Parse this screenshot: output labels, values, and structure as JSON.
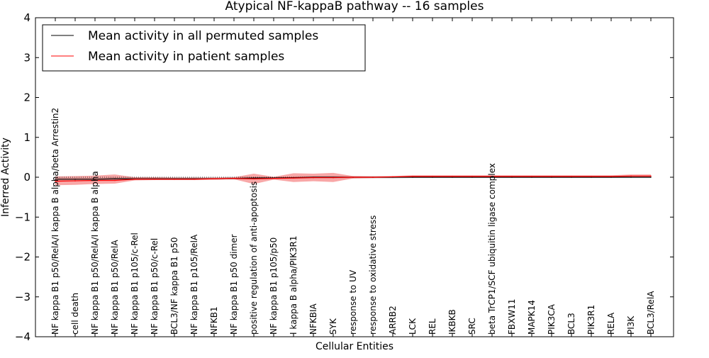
{
  "chart_data": {
    "type": "line",
    "title": "Atypical NF-kappaB pathway -- 16 samples",
    "xlabel": "Cellular Entities",
    "ylabel": "Inferred Activity",
    "ylim": [
      -4,
      4
    ],
    "yticks": [
      "−4",
      "−3",
      "−2",
      "−1",
      "0",
      "1",
      "2",
      "3",
      "4"
    ],
    "ytick_values": [
      -4,
      -3,
      -2,
      -1,
      0,
      1,
      2,
      3,
      4
    ],
    "grid": false,
    "legend_position": "top-left",
    "categories": [
      "NF kappa B1 p50/RelA/I kappa B alpha/beta Arrestin2",
      "cell death",
      "NF kappa B1 p50/RelA/I kappa B alpha",
      "NF kappa B1 p50/RelA",
      "NF kappa B1 p105/c-Rel",
      "NF kappa B1 p50/c-Rel",
      "BCL3/NF kappa B1 p50",
      "NF kappa B1 p105/RelA",
      "NFKB1",
      "NF kappa B1 p50 dimer",
      "positive regulation of anti-apoptosis",
      "NF kappa B1 p105/p50",
      "I kappa B alpha/PIK3R1",
      "NFKBIA",
      "SYK",
      "response to UV",
      "response to oxidative stress",
      "ARRB2",
      "LCK",
      "REL",
      "IKBKB",
      "SRC",
      "beta TrCP1/SCF ubiquitin ligase complex",
      "FBXW11",
      "MAPK14",
      "PIK3CA",
      "BCL3",
      "PIK3R1",
      "RELA",
      "PI3K",
      "BCL3/RelA"
    ],
    "series": [
      {
        "name": "Mean activity in all permuted samples",
        "color": "#000000",
        "values": [
          -0.05,
          -0.05,
          -0.05,
          -0.04,
          -0.04,
          -0.04,
          -0.04,
          -0.04,
          -0.04,
          -0.03,
          -0.02,
          -0.02,
          -0.01,
          0.0,
          0.0,
          0.0,
          0.0,
          0.0,
          0.0,
          0.0,
          0.0,
          0.0,
          0.0,
          0.0,
          0.0,
          0.0,
          0.0,
          0.0,
          0.0,
          0.0,
          0.0
        ],
        "band_low": [
          -0.09,
          -0.09,
          -0.08,
          -0.08,
          -0.07,
          -0.07,
          -0.07,
          -0.07,
          -0.06,
          -0.06,
          -0.05,
          -0.05,
          -0.04,
          -0.03,
          -0.03,
          -0.03,
          -0.03,
          -0.03,
          -0.02,
          -0.02,
          -0.02,
          -0.02,
          -0.02,
          -0.02,
          -0.02,
          -0.02,
          -0.02,
          -0.02,
          -0.02,
          -0.02,
          -0.02
        ],
        "band_high": [
          -0.01,
          -0.01,
          -0.01,
          0.0,
          0.0,
          0.0,
          0.0,
          0.0,
          0.0,
          0.01,
          0.01,
          0.01,
          0.02,
          0.03,
          0.03,
          0.03,
          0.03,
          0.03,
          0.02,
          0.02,
          0.02,
          0.02,
          0.02,
          0.02,
          0.02,
          0.02,
          0.02,
          0.02,
          0.02,
          0.02,
          0.02
        ]
      },
      {
        "name": "Mean activity in patient samples",
        "color": "#ff0000",
        "values": [
          -0.1,
          -0.09,
          -0.08,
          -0.08,
          -0.05,
          -0.05,
          -0.05,
          -0.05,
          -0.04,
          -0.03,
          -0.04,
          -0.03,
          -0.02,
          -0.01,
          -0.01,
          0.0,
          0.0,
          0.01,
          0.02,
          0.02,
          0.02,
          0.02,
          0.02,
          0.02,
          0.02,
          0.02,
          0.02,
          0.02,
          0.02,
          0.03,
          0.03
        ],
        "band_low": [
          -0.2,
          -0.19,
          -0.17,
          -0.16,
          -0.08,
          -0.07,
          -0.07,
          -0.07,
          -0.06,
          -0.05,
          -0.17,
          -0.06,
          -0.12,
          -0.1,
          -0.12,
          -0.03,
          -0.02,
          -0.01,
          0.0,
          0.0,
          0.0,
          0.0,
          0.0,
          0.0,
          0.0,
          0.0,
          0.0,
          0.0,
          0.0,
          0.0,
          0.0
        ],
        "band_high": [
          0.02,
          0.03,
          0.04,
          0.07,
          0.0,
          0.0,
          -0.01,
          -0.01,
          -0.01,
          0.0,
          0.09,
          0.01,
          0.1,
          0.09,
          0.11,
          0.03,
          0.02,
          0.03,
          0.05,
          0.05,
          0.05,
          0.05,
          0.05,
          0.05,
          0.05,
          0.05,
          0.05,
          0.05,
          0.05,
          0.07,
          0.07
        ]
      }
    ]
  }
}
